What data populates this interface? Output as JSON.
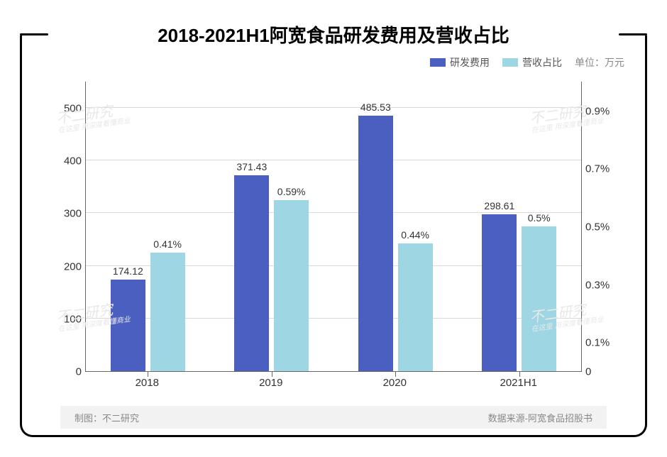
{
  "title": {
    "text": "2018-2021H1阿宽食品研发费用及营收占比",
    "fontsize": 26
  },
  "legend": {
    "series1_label": "研发费用",
    "series2_label": "营收占比",
    "unit_label": "单位：万元"
  },
  "chart": {
    "type": "grouped-bar-dual-axis",
    "background_color": "#ffffff",
    "grid_color": "#d9d9d9",
    "axis_color": "#666666",
    "categories": [
      "2018",
      "2019",
      "2020",
      "2021H1"
    ],
    "series1": {
      "name": "研发费用",
      "color": "#4b5fc1",
      "values": [
        174.12,
        371.43,
        485.53,
        298.61
      ],
      "value_labels": [
        "174.12",
        "371.43",
        "485.53",
        "298.61"
      ]
    },
    "series2": {
      "name": "营收占比",
      "color": "#9ed7e3",
      "values": [
        0.41,
        0.59,
        0.44,
        0.5
      ],
      "value_labels": [
        "0.41%",
        "0.59%",
        "0.44%",
        "0.5%"
      ]
    },
    "y_left": {
      "min": 0,
      "max": 550,
      "ticks": [
        0,
        100,
        200,
        300,
        400,
        500
      ],
      "label_fontsize": 15
    },
    "y_right": {
      "min": 0,
      "max": 1.0,
      "ticks": [
        0,
        0.1,
        0.3,
        0.5,
        0.7,
        0.9
      ],
      "tick_labels": [
        "0",
        "0.1%",
        "0.3%",
        "0.5%",
        "0.7%",
        "0.9%"
      ],
      "label_fontsize": 15
    },
    "bar_width_pct": 7.0,
    "gap_between_bars_pct": 1.0
  },
  "footer": {
    "left": "制图：不二研究",
    "right": "数据来源-阿宽食品招股书"
  },
  "watermark": {
    "main": "不二研究",
    "sub": "在这里 用深度看懂商业"
  },
  "styling": {
    "frame_border_color": "#000000",
    "frame_border_width": 3,
    "frame_border_radius": 18,
    "footer_bg": "#f2f2f2",
    "footer_text_color": "#888888"
  }
}
